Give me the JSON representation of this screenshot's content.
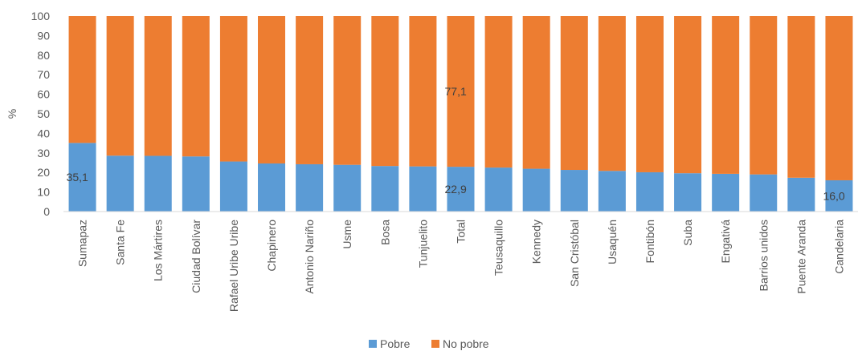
{
  "chart_data": {
    "type": "bar",
    "stacked": true,
    "title": "",
    "xlabel": "",
    "ylabel": "%",
    "ylim": [
      0,
      100
    ],
    "yticks": [
      0,
      10,
      20,
      30,
      40,
      50,
      60,
      70,
      80,
      90,
      100
    ],
    "grid": false,
    "legend": "bottom-center",
    "categories": [
      "Sumapaz",
      "Santa Fe",
      "Los Mártires",
      "Ciudad Bolívar",
      "Rafael Uribe Uribe",
      "Chapinero",
      "Antonio Nariño",
      "Usme",
      "Bosa",
      "Tunjuelito",
      "Total",
      "Teusaquillo",
      "Kennedy",
      "San Cristóbal",
      "Usaquén",
      "Fontibón",
      "Suba",
      "Engativá",
      "Barrios unidos",
      "Puente Aranda",
      "Candelaria"
    ],
    "series": [
      {
        "name": "Pobre",
        "color": "#5B9BD5",
        "values": [
          35.1,
          28.6,
          28.5,
          28.2,
          25.6,
          24.6,
          24.2,
          23.9,
          23.3,
          23.1,
          22.9,
          22.5,
          21.9,
          21.3,
          20.8,
          20.1,
          19.6,
          19.3,
          19.0,
          17.3,
          16.0
        ]
      },
      {
        "name": "No pobre",
        "color": "#ED7D31",
        "values": [
          64.9,
          71.4,
          71.5,
          71.8,
          74.4,
          75.4,
          75.8,
          76.1,
          76.7,
          76.9,
          77.1,
          77.5,
          78.1,
          78.7,
          79.2,
          79.9,
          80.4,
          80.7,
          81.0,
          82.7,
          84.0
        ]
      }
    ],
    "data_labels": [
      {
        "text": "35,1",
        "category": "Sumapaz",
        "series": "Pobre",
        "value": 35.1
      },
      {
        "text": "77,1",
        "category": "Total",
        "series": "No pobre",
        "value": 77.1
      },
      {
        "text": "22,9",
        "category": "Total",
        "series": "Pobre",
        "value": 22.9
      },
      {
        "text": "16,0",
        "category": "Candelaria",
        "series": "Pobre",
        "value": 16.0
      }
    ]
  }
}
